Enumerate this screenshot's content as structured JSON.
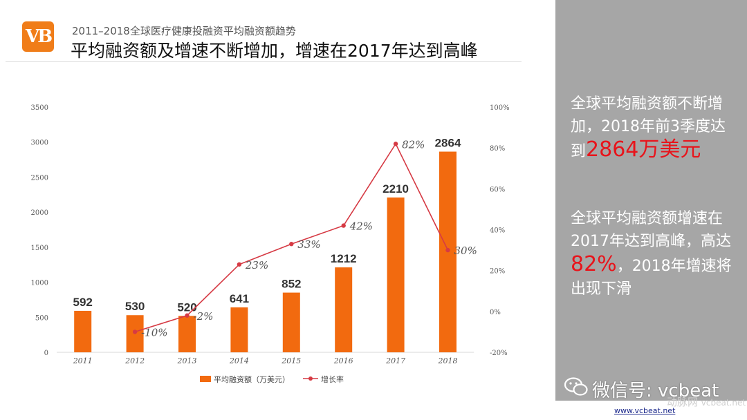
{
  "header": {
    "logo_text": "VB",
    "subtitle": "2011–2018全球医疗健康投融资平均融资额趋势",
    "title": "平均融资额及增速不断增加，增速在2017年达到高峰"
  },
  "colors": {
    "bar": "#f26a0f",
    "line": "#d63a44",
    "panel": "#a6a6a6",
    "highlight": "#e8141b"
  },
  "chart_data": {
    "type": "bar+line",
    "categories": [
      "2011",
      "2012",
      "2013",
      "2014",
      "2015",
      "2016",
      "2017",
      "2018"
    ],
    "series": [
      {
        "name": "平均融资额（万美元）",
        "type": "bar",
        "axis": "left",
        "values": [
          592,
          530,
          520,
          641,
          852,
          1212,
          2210,
          2864
        ],
        "labels": [
          "592",
          "530",
          "520",
          "641",
          "852",
          "1212",
          "2210",
          "2864"
        ]
      },
      {
        "name": "增长率",
        "type": "line",
        "axis": "right",
        "x": [
          "2012",
          "2013",
          "2014",
          "2015",
          "2016",
          "2017",
          "2018"
        ],
        "values": [
          -10,
          -2,
          23,
          33,
          42,
          82,
          30
        ],
        "labels": [
          "-10%",
          "-2%",
          "23%",
          "33%",
          "42%",
          "82%",
          "30%"
        ]
      }
    ],
    "y_left": {
      "min": 0,
      "max": 3500,
      "ticks": [
        "0",
        "500",
        "1000",
        "1500",
        "2000",
        "2500",
        "3000",
        "3500"
      ]
    },
    "y_right": {
      "min": -20,
      "max": 100,
      "ticks": [
        "-20%",
        "0%",
        "20%",
        "40%",
        "60%",
        "80%",
        "100%"
      ]
    },
    "legend": [
      "平均融资额（万美元）",
      "增长率"
    ],
    "legend_position": "bottom",
    "grid": false
  },
  "side_panel": {
    "p1_text": "全球平均融资额不断增加，2018年前3季度达到",
    "p1_highlight": "2864万美元",
    "p2_text1": "全球平均融资额增速在2017年达到高峰，高达",
    "p2_highlight": "82%",
    "p2_text2": "，2018年增速将出现下滑"
  },
  "footer": {
    "wechat": "微信号: vcbeat",
    "site_mark": "动脉网",
    "site_sub": "vcbeat.net",
    "url": "www.vcbeat.net"
  }
}
